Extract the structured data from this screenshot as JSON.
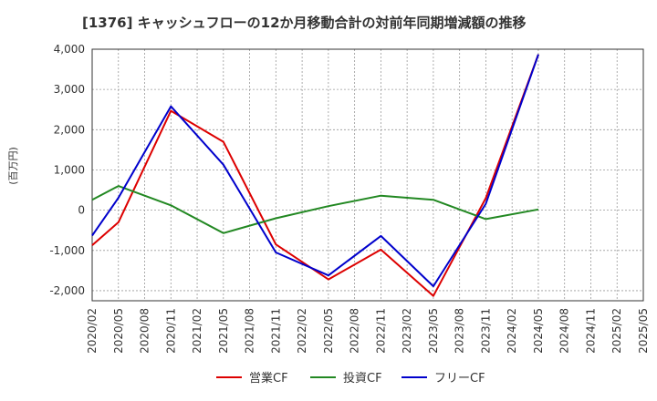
{
  "chart_data": {
    "type": "line",
    "title": "[1376]  キャッシュフローの12か月移動合計の対前年同期増減額の推移",
    "ylabel": "(百万円)",
    "xlabel": "",
    "ylim": [
      -2250,
      4000
    ],
    "yticks": [
      -2000,
      -1000,
      0,
      1000,
      2000,
      3000,
      4000
    ],
    "ytick_labels": [
      "-2,000",
      "-1,000",
      "0",
      "1,000",
      "2,000",
      "3,000",
      "4,000"
    ],
    "categories": [
      "2020/02",
      "2020/05",
      "2020/08",
      "2020/11",
      "2021/02",
      "2021/05",
      "2021/08",
      "2021/11",
      "2022/02",
      "2022/05",
      "2022/08",
      "2022/11",
      "2023/02",
      "2023/05",
      "2023/08",
      "2023/11",
      "2024/02",
      "2024/05",
      "2024/08",
      "2024/11",
      "2025/02",
      "2025/05"
    ],
    "grid": true,
    "legend_position": "bottom",
    "series": [
      {
        "name": "営業CF",
        "color": "#dd0000",
        "values": [
          -870,
          -300,
          null,
          2470,
          null,
          1700,
          null,
          -850,
          null,
          -1720,
          null,
          -980,
          null,
          -2130,
          null,
          300,
          null,
          3870,
          null,
          null,
          null,
          null
        ]
      },
      {
        "name": "投資CF",
        "color": "#228822",
        "values": [
          260,
          600,
          null,
          120,
          null,
          -570,
          null,
          -200,
          null,
          100,
          null,
          360,
          null,
          260,
          null,
          -220,
          null,
          20,
          null,
          null,
          null,
          null
        ]
      },
      {
        "name": "フリーCF",
        "color": "#0000cc",
        "values": [
          -630,
          310,
          null,
          2580,
          null,
          1130,
          null,
          -1050,
          null,
          -1620,
          null,
          -640,
          null,
          -1890,
          null,
          160,
          null,
          3870,
          null,
          null,
          null,
          null
        ]
      }
    ]
  }
}
